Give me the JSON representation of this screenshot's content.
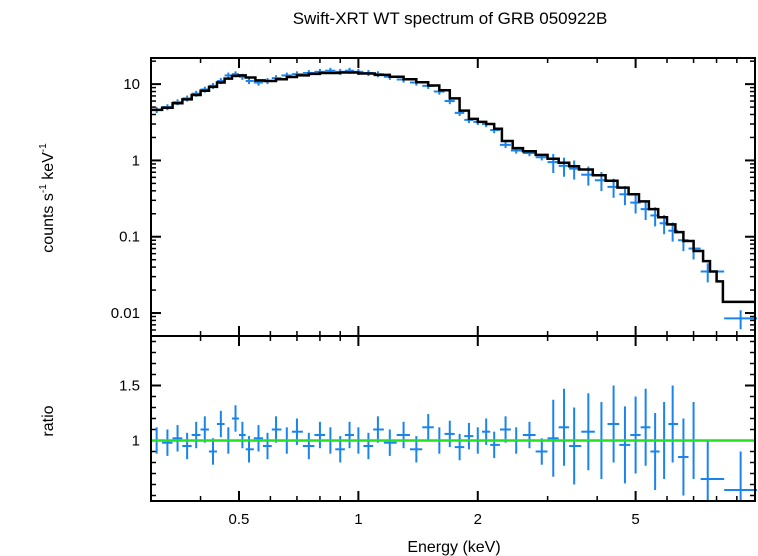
{
  "chart_data": [
    {
      "type": "scatter",
      "title": "Swift-XRT WT spectrum of GRB 050922B",
      "ylabel_parts": [
        "counts s",
        "-1",
        " keV",
        "-1"
      ],
      "xscale": "log",
      "yscale": "log",
      "xlim": [
        0.3,
        10
      ],
      "ylim": [
        0.005,
        22
      ],
      "yticks": [
        {
          "v": 0.01,
          "label": "0.01"
        },
        {
          "v": 0.1,
          "label": "0.1"
        },
        {
          "v": 1,
          "label": "1"
        },
        {
          "v": 10,
          "label": "10"
        }
      ],
      "series": [
        {
          "kind": "data",
          "color": "#1a84ec",
          "points": [
            [
              0.31,
              4.6
            ],
            [
              0.33,
              5.0
            ],
            [
              0.35,
              5.8
            ],
            [
              0.37,
              6.5
            ],
            [
              0.39,
              7.5
            ],
            [
              0.41,
              8.5
            ],
            [
              0.43,
              9.5
            ],
            [
              0.45,
              11.0
            ],
            [
              0.47,
              13.0
            ],
            [
              0.49,
              13.5
            ],
            [
              0.51,
              12.5
            ],
            [
              0.53,
              11.0
            ],
            [
              0.56,
              10.5
            ],
            [
              0.59,
              11.0
            ],
            [
              0.62,
              12.0
            ],
            [
              0.66,
              13.0
            ],
            [
              0.7,
              13.5
            ],
            [
              0.75,
              14.0
            ],
            [
              0.8,
              14.5
            ],
            [
              0.85,
              15.0
            ],
            [
              0.9,
              14.5
            ],
            [
              0.95,
              15.0
            ],
            [
              1.0,
              14.5
            ],
            [
              1.06,
              14.0
            ],
            [
              1.12,
              13.5
            ],
            [
              1.2,
              12.5
            ],
            [
              1.3,
              11.5
            ],
            [
              1.4,
              10.5
            ],
            [
              1.5,
              9.5
            ],
            [
              1.6,
              8.0
            ],
            [
              1.7,
              6.0
            ],
            [
              1.8,
              4.2
            ],
            [
              1.9,
              3.4
            ],
            [
              2.0,
              3.2
            ],
            [
              2.1,
              3.0
            ],
            [
              2.2,
              2.5
            ],
            [
              2.35,
              1.6
            ],
            [
              2.5,
              1.35
            ],
            [
              2.7,
              1.25
            ],
            [
              2.9,
              1.1
            ],
            [
              3.1,
              0.95
            ],
            [
              3.3,
              0.85
            ],
            [
              3.5,
              0.78
            ],
            [
              3.8,
              0.65
            ],
            [
              4.1,
              0.55
            ],
            [
              4.4,
              0.45
            ],
            [
              4.7,
              0.36
            ],
            [
              5.0,
              0.28
            ],
            [
              5.3,
              0.23
            ],
            [
              5.6,
              0.19
            ],
            [
              5.9,
              0.15
            ],
            [
              6.2,
              0.12
            ],
            [
              6.6,
              0.09
            ],
            [
              7.0,
              0.07
            ],
            [
              7.6,
              0.035
            ],
            [
              9.2,
              0.0085
            ]
          ]
        },
        {
          "kind": "model",
          "color": "#000000",
          "points": [
            [
              0.3,
              4.6
            ],
            [
              0.32,
              4.9
            ],
            [
              0.34,
              5.6
            ],
            [
              0.36,
              6.3
            ],
            [
              0.38,
              7.2
            ],
            [
              0.4,
              8.2
            ],
            [
              0.42,
              9.2
            ],
            [
              0.44,
              10.5
            ],
            [
              0.46,
              11.8
            ],
            [
              0.48,
              12.8
            ],
            [
              0.5,
              13.0
            ],
            [
              0.52,
              12.2
            ],
            [
              0.55,
              11.2
            ],
            [
              0.58,
              11.0
            ],
            [
              0.62,
              11.6
            ],
            [
              0.66,
              12.4
            ],
            [
              0.7,
              13.0
            ],
            [
              0.75,
              13.6
            ],
            [
              0.8,
              14.0
            ],
            [
              0.9,
              14.2
            ],
            [
              1.0,
              13.8
            ],
            [
              1.1,
              13.2
            ],
            [
              1.2,
              12.5
            ],
            [
              1.3,
              11.6
            ],
            [
              1.4,
              10.6
            ],
            [
              1.5,
              9.6
            ],
            [
              1.6,
              8.3
            ],
            [
              1.7,
              6.5
            ],
            [
              1.8,
              4.5
            ],
            [
              1.9,
              3.5
            ],
            [
              2.0,
              3.2
            ],
            [
              2.1,
              3.0
            ],
            [
              2.2,
              2.6
            ],
            [
              2.3,
              1.8
            ],
            [
              2.45,
              1.45
            ],
            [
              2.6,
              1.32
            ],
            [
              2.8,
              1.18
            ],
            [
              3.0,
              1.05
            ],
            [
              3.2,
              0.93
            ],
            [
              3.4,
              0.84
            ],
            [
              3.6,
              0.76
            ],
            [
              3.9,
              0.64
            ],
            [
              4.2,
              0.54
            ],
            [
              4.5,
              0.44
            ],
            [
              4.8,
              0.36
            ],
            [
              5.1,
              0.29
            ],
            [
              5.4,
              0.23
            ],
            [
              5.7,
              0.18
            ],
            [
              6.0,
              0.145
            ],
            [
              6.3,
              0.115
            ],
            [
              6.6,
              0.088
            ],
            [
              7.0,
              0.065
            ],
            [
              7.4,
              0.048
            ],
            [
              7.7,
              0.035
            ],
            [
              8.0,
              0.026
            ],
            [
              8.3,
              0.014
            ],
            [
              10.0,
              0.014
            ]
          ]
        }
      ]
    },
    {
      "type": "scatter",
      "xlabel": "Energy (keV)",
      "ylabel": "ratio",
      "xscale": "log",
      "xlim": [
        0.3,
        10
      ],
      "ylim": [
        0.45,
        1.95
      ],
      "xticks": [
        {
          "v": 0.5,
          "label": "0.5"
        },
        {
          "v": 1,
          "label": "1"
        },
        {
          "v": 2,
          "label": "2"
        },
        {
          "v": 5,
          "label": "5"
        }
      ],
      "yticks": [
        {
          "v": 1,
          "label": "1"
        },
        {
          "v": 1.5,
          "label": "1.5"
        }
      ],
      "reference_line": {
        "y": 1.0,
        "color": "#22e022"
      },
      "series": [
        {
          "kind": "data",
          "color": "#1a84ec",
          "points": [
            [
              0.31,
              1.0
            ],
            [
              0.33,
              0.98
            ],
            [
              0.35,
              1.02
            ],
            [
              0.37,
              0.95
            ],
            [
              0.39,
              1.05
            ],
            [
              0.41,
              1.1
            ],
            [
              0.43,
              0.9
            ],
            [
              0.45,
              1.15
            ],
            [
              0.47,
              1.0
            ],
            [
              0.49,
              1.2
            ],
            [
              0.51,
              1.05
            ],
            [
              0.53,
              0.92
            ],
            [
              0.56,
              1.02
            ],
            [
              0.59,
              0.95
            ],
            [
              0.62,
              1.1
            ],
            [
              0.66,
              1.0
            ],
            [
              0.7,
              1.08
            ],
            [
              0.75,
              0.95
            ],
            [
              0.8,
              1.05
            ],
            [
              0.85,
              1.0
            ],
            [
              0.9,
              0.92
            ],
            [
              0.95,
              1.05
            ],
            [
              1.0,
              1.0
            ],
            [
              1.06,
              0.95
            ],
            [
              1.12,
              1.1
            ],
            [
              1.2,
              0.98
            ],
            [
              1.3,
              1.05
            ],
            [
              1.4,
              0.92
            ],
            [
              1.5,
              1.12
            ],
            [
              1.6,
              1.0
            ],
            [
              1.7,
              1.06
            ],
            [
              1.8,
              0.94
            ],
            [
              1.9,
              1.04
            ],
            [
              2.0,
              1.0
            ],
            [
              2.1,
              1.08
            ],
            [
              2.2,
              0.96
            ],
            [
              2.35,
              1.1
            ],
            [
              2.5,
              1.0
            ],
            [
              2.7,
              1.05
            ],
            [
              2.9,
              0.9
            ],
            [
              3.1,
              1.02
            ],
            [
              3.3,
              1.12
            ],
            [
              3.5,
              0.95
            ],
            [
              3.8,
              1.08
            ],
            [
              4.1,
              1.0
            ],
            [
              4.4,
              1.15
            ],
            [
              4.7,
              0.96
            ],
            [
              5.0,
              1.05
            ],
            [
              5.3,
              1.12
            ],
            [
              5.6,
              0.9
            ],
            [
              5.9,
              1.0
            ],
            [
              6.2,
              1.15
            ],
            [
              6.6,
              0.85
            ],
            [
              7.0,
              1.0
            ],
            [
              7.6,
              0.65
            ],
            [
              9.2,
              0.55
            ]
          ]
        }
      ]
    }
  ]
}
